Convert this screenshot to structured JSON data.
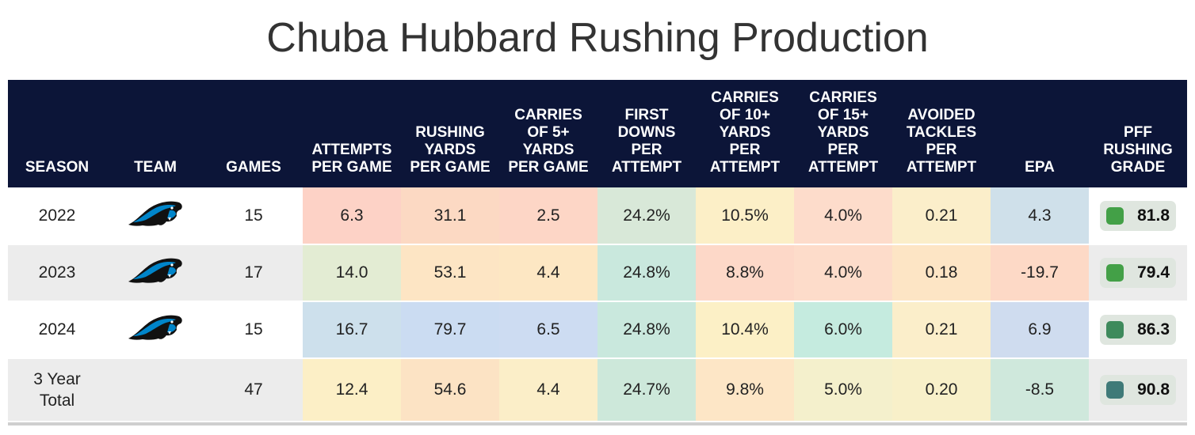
{
  "title": "Chuba Hubbard Rushing Production",
  "headers": {
    "season": "SEASON",
    "team": "TEAM",
    "games": "GAMES",
    "att_pg": "ATTEMPTS\nPER GAME",
    "yds_pg": "RUSHING\nYARDS\nPER GAME",
    "c5_pg": "CARRIES\nOF 5+\nYARDS\nPER GAME",
    "fd_pa": "FIRST\nDOWNS\nPER\nATTEMPT",
    "c10_pa": "CARRIES\nOF 10+\nYARDS\nPER\nATTEMPT",
    "c15_pa": "CARRIES\nOF 15+\nYARDS\nPER\nATTEMPT",
    "at_pa": "AVOIDED\nTACKLES\nPER\nATTEMPT",
    "epa": "EPA",
    "grade": "PFF\nRUSHING\nGRADE"
  },
  "colors": {
    "header_bg": "#0c1538",
    "grade_green": "#43a047",
    "grade_darkgreen": "#3e8a5c",
    "grade_teal": "#3f7a78",
    "pill_bg": "#dfe6df",
    "logo_black": "#111111",
    "logo_blue": "#0085ca"
  },
  "team_logo_icon": "carolina-panthers-logo-icon",
  "rows": [
    {
      "season": "2022",
      "has_logo": true,
      "games": "15",
      "att_pg": "6.3",
      "yds_pg": "31.1",
      "c5_pg": "2.5",
      "fd_pa": "24.2%",
      "c10_pa": "10.5%",
      "c15_pa": "4.0%",
      "at_pa": "0.21",
      "epa": "4.3",
      "grade": "81.8",
      "cell_colors": [
        "#fdd2c6",
        "#fcd9c3",
        "#fdd6c6",
        "#d8e8d8",
        "#fcefc7",
        "#fddccb",
        "#fbeeca",
        "#cfe0ea"
      ],
      "grade_color": "#43a047"
    },
    {
      "season": "2023",
      "has_logo": true,
      "games": "17",
      "att_pg": "14.0",
      "yds_pg": "53.1",
      "c5_pg": "4.4",
      "fd_pa": "24.8%",
      "c10_pa": "8.8%",
      "c15_pa": "4.0%",
      "at_pa": "0.18",
      "epa": "-19.7",
      "grade": "79.4",
      "cell_colors": [
        "#e3ecd3",
        "#fde5c4",
        "#fde7c3",
        "#c9e8dd",
        "#fdd8c8",
        "#fddcca",
        "#fde5c5",
        "#fdd9c6"
      ],
      "grade_color": "#43a047"
    },
    {
      "season": "2024",
      "has_logo": true,
      "games": "15",
      "att_pg": "16.7",
      "yds_pg": "79.7",
      "c5_pg": "6.5",
      "fd_pa": "24.8%",
      "c10_pa": "10.4%",
      "c15_pa": "6.0%",
      "at_pa": "0.21",
      "epa": "6.9",
      "grade": "86.3",
      "cell_colors": [
        "#cde0ec",
        "#cbdcf2",
        "#cddcf2",
        "#c9e8dd",
        "#fcf0c6",
        "#c5ebdf",
        "#fbeeca",
        "#cfdcef"
      ],
      "grade_color": "#3e8a5c"
    },
    {
      "season": "3 Year\nTotal",
      "has_logo": false,
      "games": "47",
      "att_pg": "12.4",
      "yds_pg": "54.6",
      "c5_pg": "4.4",
      "fd_pa": "24.7%",
      "c10_pa": "9.8%",
      "c15_pa": "5.0%",
      "at_pa": "0.20",
      "epa": "-8.5",
      "grade": "90.8",
      "cell_colors": [
        "#fcefc6",
        "#fce3c4",
        "#fbeec8",
        "#cde8da",
        "#fde6c6",
        "#f4f0cc",
        "#f8f0c9",
        "#cfe8dc"
      ],
      "grade_color": "#3f7a78"
    }
  ]
}
